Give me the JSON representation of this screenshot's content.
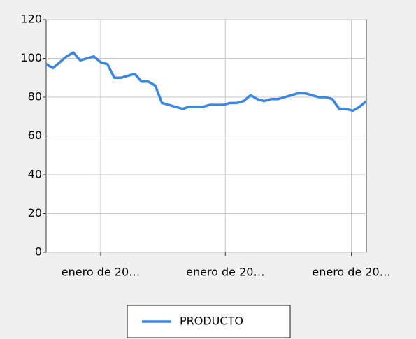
{
  "chart_data": {
    "type": "line",
    "series": [
      {
        "name": "PRODUCTO",
        "color": "#3b86e3",
        "values": [
          97,
          95,
          98,
          101,
          103,
          99,
          100,
          101,
          98,
          97,
          90,
          90,
          91,
          92,
          88,
          88,
          86,
          77,
          76,
          75,
          74,
          75,
          75,
          75,
          76,
          76,
          76,
          77,
          77,
          78,
          81,
          79,
          78,
          79,
          79,
          80,
          81,
          82,
          82,
          81,
          80,
          80,
          79,
          74,
          74,
          73,
          75,
          78
        ]
      }
    ],
    "xlim": [
      0,
      47
    ],
    "xticks": [
      {
        "value": 8,
        "label": "enero  de 20…"
      },
      {
        "value": 26.3,
        "label": "enero  de 20…"
      },
      {
        "value": 44.8,
        "label": "enero  de 20…"
      }
    ],
    "ylim": [
      0,
      120
    ],
    "yticks": [
      0,
      20,
      40,
      60,
      80,
      100,
      120
    ],
    "grid": true,
    "legend": "bottom"
  }
}
